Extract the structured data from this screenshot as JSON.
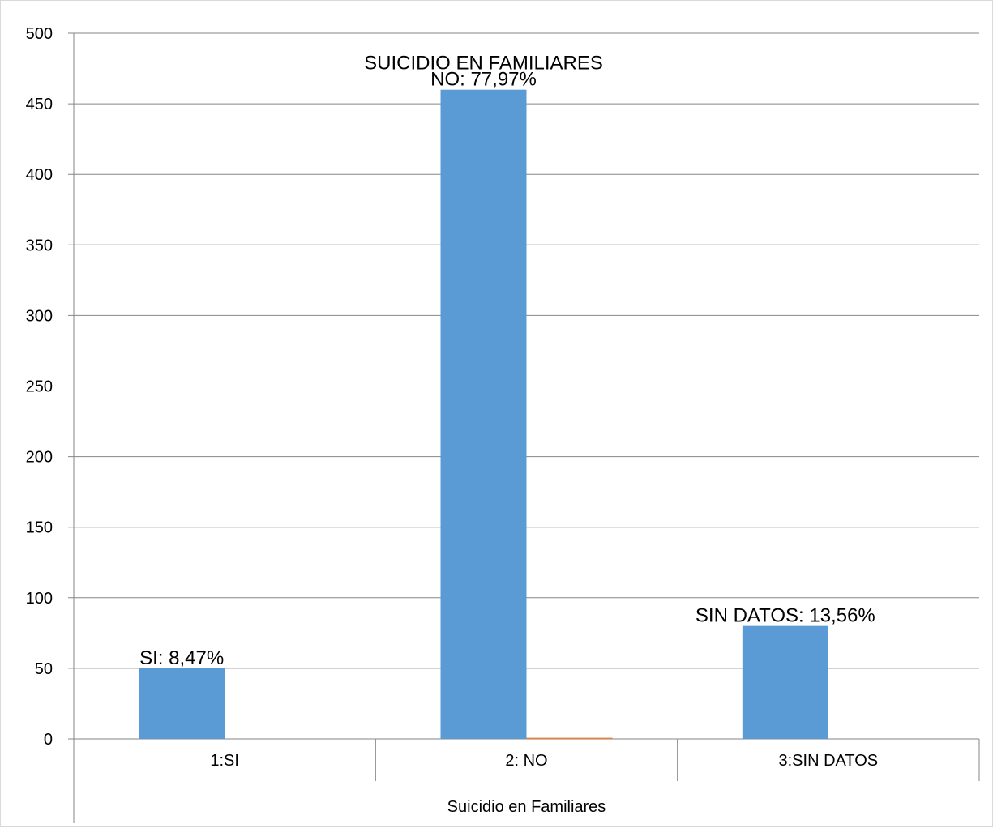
{
  "chart_data": {
    "type": "bar",
    "categories": [
      "1:SI",
      "2: NO",
      "3:SIN DATOS"
    ],
    "series": [
      {
        "values": [
          50,
          460,
          80
        ],
        "color": "#5b9bd5"
      },
      {
        "values": [
          0,
          0.8,
          0
        ],
        "color": "#ed7d31"
      }
    ],
    "data_labels": [
      "SI: 8,47%",
      "NO: 77,97%",
      "SIN DATOS: 13,56%"
    ],
    "annotation": "SUICIDIO EN FAMILIARES",
    "xlabel": "Suicidio en Familiares",
    "ylabel": "",
    "ylim": [
      0,
      500
    ],
    "yticks": [
      "0",
      "50",
      "100",
      "150",
      "200",
      "250",
      "300",
      "350",
      "400",
      "450",
      "500"
    ],
    "grid": true,
    "legend": "none"
  }
}
